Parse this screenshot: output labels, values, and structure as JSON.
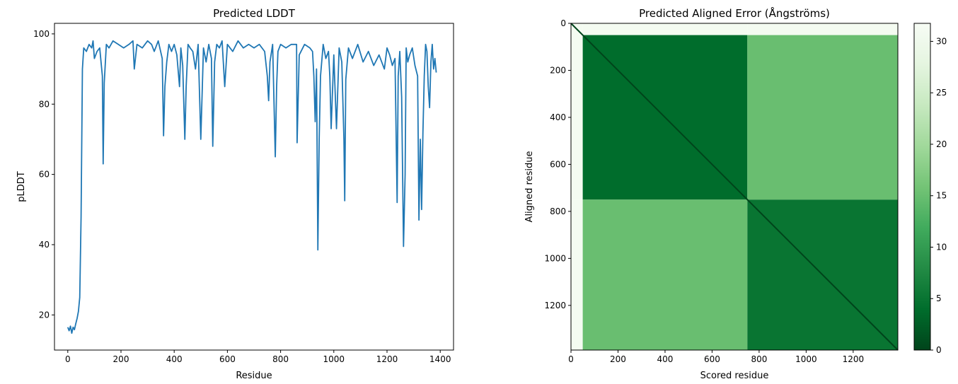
{
  "chart_data": [
    {
      "type": "line",
      "title": "Predicted LDDT",
      "xlabel": "Residue",
      "ylabel": "pLDDT",
      "xlim": [
        -50,
        1450
      ],
      "ylim": [
        10,
        103
      ],
      "xticks": [
        0,
        200,
        400,
        600,
        800,
        1000,
        1200,
        1400
      ],
      "yticks": [
        20,
        40,
        60,
        80,
        100
      ],
      "series": [
        {
          "color": "#1f77b4",
          "x": [
            0,
            5,
            10,
            15,
            20,
            25,
            30,
            35,
            40,
            45,
            50,
            55,
            60,
            70,
            80,
            90,
            95,
            100,
            110,
            120,
            130,
            133,
            137,
            145,
            155,
            170,
            190,
            210,
            230,
            245,
            250,
            260,
            280,
            300,
            315,
            325,
            340,
            355,
            360,
            365,
            372,
            380,
            390,
            400,
            410,
            420,
            425,
            432,
            440,
            445,
            452,
            460,
            470,
            480,
            490,
            500,
            510,
            520,
            530,
            540,
            545,
            552,
            560,
            570,
            580,
            590,
            600,
            620,
            640,
            660,
            680,
            700,
            720,
            740,
            750,
            755,
            760,
            770,
            780,
            785,
            790,
            800,
            820,
            840,
            860,
            862,
            870,
            890,
            910,
            920,
            925,
            930,
            935,
            940,
            945,
            950,
            960,
            970,
            980,
            985,
            990,
            1000,
            1010,
            1020,
            1030,
            1038,
            1041,
            1045,
            1055,
            1070,
            1090,
            1110,
            1130,
            1150,
            1170,
            1190,
            1200,
            1210,
            1220,
            1230,
            1238,
            1242,
            1248,
            1255,
            1262,
            1268,
            1272,
            1278,
            1285,
            1295,
            1305,
            1315,
            1320,
            1325,
            1330,
            1335,
            1340,
            1345,
            1350,
            1355,
            1360,
            1365,
            1370,
            1375,
            1380,
            1385
          ],
          "y": [
            16.5,
            15.5,
            16.8,
            14.8,
            16.5,
            15.8,
            17.5,
            19,
            21,
            25,
            48,
            90,
            96,
            95,
            97,
            96,
            98,
            93,
            95,
            96,
            88,
            63,
            86,
            97,
            96,
            98,
            97,
            96,
            97,
            98,
            90,
            97,
            96,
            98,
            97,
            95,
            98,
            93,
            71,
            85,
            92,
            97,
            95,
            97,
            94,
            85,
            96,
            91,
            70,
            85,
            97,
            96,
            95,
            90,
            97,
            70,
            96,
            92,
            97,
            93,
            68,
            92,
            97,
            96,
            98,
            85,
            97,
            95,
            98,
            96,
            97,
            96,
            97,
            95,
            88,
            81,
            92,
            97,
            65,
            85,
            95,
            97,
            96,
            97,
            97,
            69,
            94,
            97,
            96,
            95,
            88,
            75,
            90,
            38.5,
            70,
            88,
            97,
            93,
            95,
            88,
            73,
            94,
            73,
            96,
            92,
            70,
            52.5,
            87,
            96,
            93,
            97,
            92,
            95,
            91,
            94,
            90,
            96,
            94,
            91,
            93,
            52,
            88,
            95,
            82,
            39.5,
            60,
            96,
            92,
            94,
            96,
            91,
            88,
            47,
            70,
            50,
            72,
            88,
            97,
            95,
            85,
            79,
            92,
            97,
            90,
            93,
            89
          ]
        }
      ]
    },
    {
      "type": "heatmap",
      "title": "Predicted Aligned Error (Ångströms)",
      "xlabel": "Scored residue",
      "ylabel": "Aligned residue",
      "n_residues": 1390,
      "xlim": [
        0,
        1390
      ],
      "ylim": [
        1390,
        0
      ],
      "xticks": [
        0,
        200,
        400,
        600,
        800,
        1000,
        1200
      ],
      "yticks": [
        0,
        200,
        400,
        600,
        800,
        1000,
        1200
      ],
      "colormap": "Greens_r",
      "colormap_stops": [
        "#00441b",
        "#006d2c",
        "#238b45",
        "#41ab5d",
        "#74c476",
        "#a1d99b",
        "#c7e9c0",
        "#e5f5e0",
        "#f7fcf5"
      ],
      "color_range": [
        0,
        31.75
      ],
      "colorbar_ticks": [
        0,
        5,
        10,
        15,
        20,
        25,
        30
      ],
      "domains": [
        {
          "start": 0,
          "end": 50,
          "pae": 31
        },
        {
          "start": 50,
          "end": 750,
          "pae": 4
        },
        {
          "start": 750,
          "end": 1390,
          "pae": 5
        }
      ],
      "inter_domain_pae": 15
    }
  ]
}
